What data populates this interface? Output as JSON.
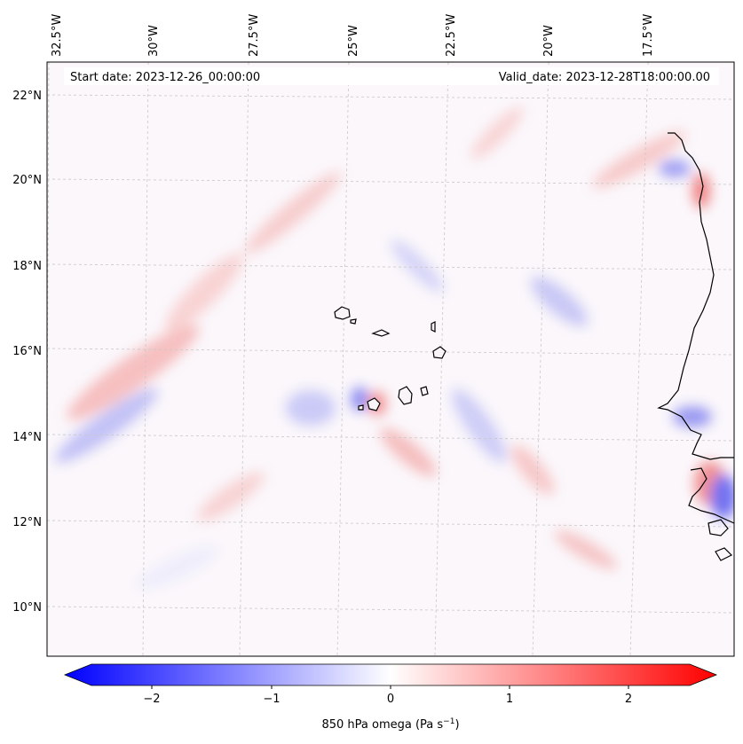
{
  "map": {
    "start_date_text": "Start date: 2023-12-26_00:00:00",
    "valid_date_text": "Valid_date: 2023-12-28T18:00:00.00",
    "lon_labels": [
      "32.5°W",
      "30°W",
      "27.5°W",
      "25°W",
      "22.5°W",
      "20°W",
      "17.5°W"
    ],
    "lat_labels": [
      "22°N",
      "20°N",
      "18°N",
      "16°N",
      "14°N",
      "12°N",
      "10°N"
    ]
  },
  "colorbar": {
    "label_prefix": "850 hPa omega (Pa s",
    "label_sup": "−1",
    "label_suffix": ")",
    "ticks": [
      "−2",
      "−1",
      "0",
      "1",
      "2"
    ],
    "min": -2.7,
    "max": 2.7,
    "extend": "both",
    "cmap": "bwr",
    "colors": {
      "negative": "#0000ff",
      "zero": "#ffffff",
      "positive": "#ff0000"
    }
  },
  "colors": {
    "coastline": "#000000",
    "gridline": "#c8c8c8"
  }
}
